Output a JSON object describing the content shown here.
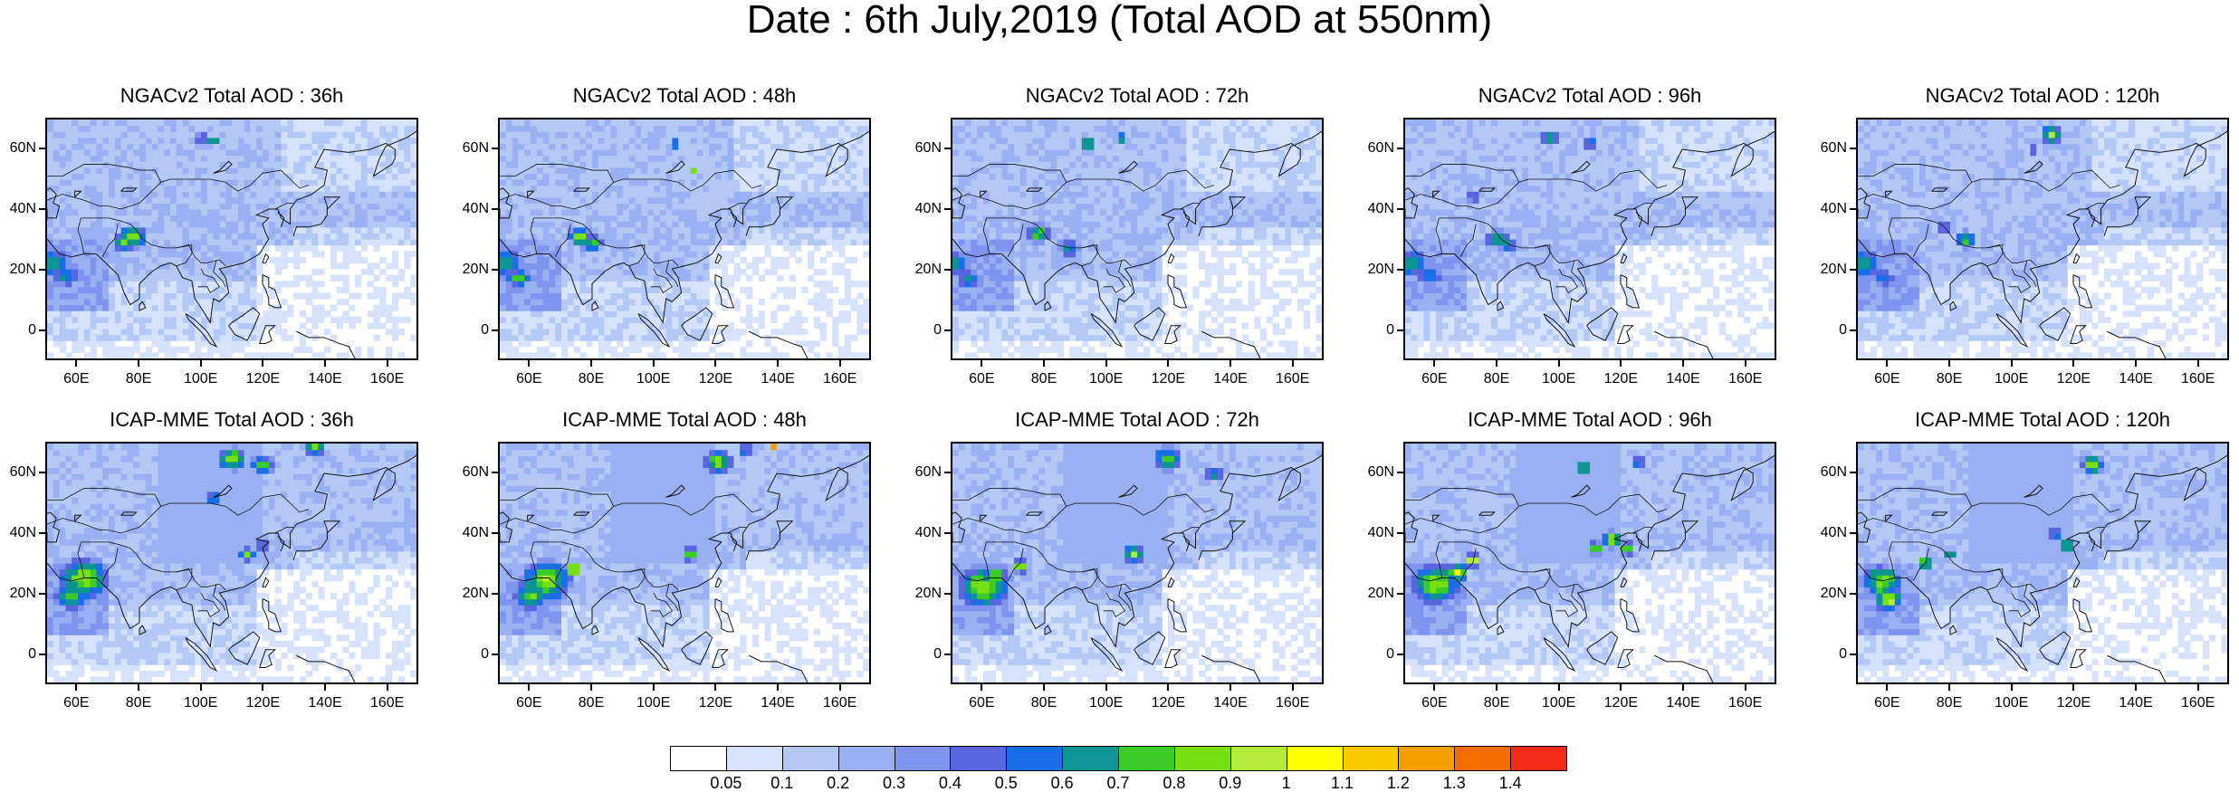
{
  "title": "Date : 6th July,2019 (Total AOD at 550nm)",
  "panels": [
    {
      "title": "NGACv2 Total AOD : 36h",
      "model": "NGAC",
      "lead": 36
    },
    {
      "title": "NGACv2 Total AOD : 48h",
      "model": "NGAC",
      "lead": 48
    },
    {
      "title": "NGACv2 Total AOD : 72h",
      "model": "NGAC",
      "lead": 72
    },
    {
      "title": "NGACv2 Total AOD : 96h",
      "model": "NGAC",
      "lead": 96
    },
    {
      "title": "NGACv2 Total AOD : 120h",
      "model": "NGAC",
      "lead": 120
    },
    {
      "title": "ICAP-MME Total AOD : 36h",
      "model": "ICAP",
      "lead": 36
    },
    {
      "title": "ICAP-MME Total AOD : 48h",
      "model": "ICAP",
      "lead": 48
    },
    {
      "title": "ICAP-MME Total AOD : 72h",
      "model": "ICAP",
      "lead": 72
    },
    {
      "title": "ICAP-MME Total AOD : 96h",
      "model": "ICAP",
      "lead": 96
    },
    {
      "title": "ICAP-MME Total AOD : 120h",
      "model": "ICAP",
      "lead": 120
    }
  ],
  "axes": {
    "lat_labels": [
      "60N",
      "40N",
      "20N",
      "0"
    ],
    "lat_values": [
      60,
      40,
      20,
      0
    ],
    "lon_labels": [
      "60E",
      "80E",
      "100E",
      "120E",
      "140E",
      "160E"
    ],
    "lon_values": [
      60,
      80,
      100,
      120,
      140,
      160
    ],
    "lon_range": [
      50,
      170
    ],
    "lat_range": [
      -10,
      70
    ]
  },
  "colorbar": {
    "labels": [
      "0.05",
      "0.1",
      "0.2",
      "0.3",
      "0.4",
      "0.5",
      "0.6",
      "0.7",
      "0.8",
      "0.9",
      "1",
      "1.1",
      "1.2",
      "1.3",
      "1.4"
    ],
    "colors": [
      "#ffffff",
      "#d6e2fb",
      "#b4c8f6",
      "#99b1f3",
      "#7f94ee",
      "#5a66e0",
      "#1a6fe8",
      "#0f9494",
      "#3ccc28",
      "#78e010",
      "#b4ec3c",
      "#ffff00",
      "#fbc800",
      "#f89e00",
      "#f56c00",
      "#f22a18"
    ]
  }
}
